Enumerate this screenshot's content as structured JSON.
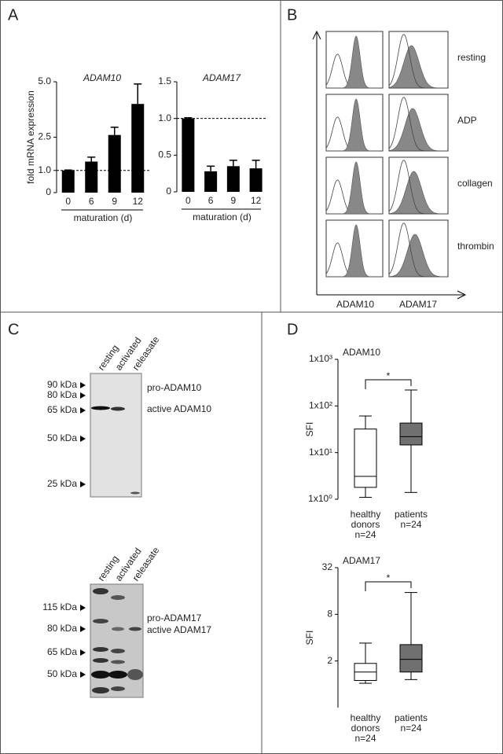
{
  "panel_labels": [
    "A",
    "B",
    "C",
    "D"
  ],
  "chart_data": [
    {
      "type": "bar",
      "title": "ADAM10",
      "ylabel": "fold mRNA expression",
      "xlabel": "maturation (d)",
      "categories": [
        "0",
        "6",
        "9",
        "12"
      ],
      "series": [
        {
          "color": "#000000",
          "values": [
            1.0,
            1.4,
            2.6,
            4.0
          ],
          "errors": [
            0.02,
            0.2,
            0.35,
            0.9
          ]
        }
      ],
      "ylim": [
        0,
        5
      ],
      "yticks": [
        0,
        {
          "value": 1,
          "label": "1.0"
        },
        2.5,
        {
          "value": 5,
          "label": "5.0"
        }
      ],
      "reference_line": 1
    },
    {
      "type": "bar",
      "title": "ADAM17",
      "xlabel": "maturation (d)",
      "categories": [
        "0",
        "6",
        "9",
        "12"
      ],
      "series": [
        {
          "color": "#000000",
          "values": [
            1.0,
            0.28,
            0.35,
            0.32
          ],
          "errors": [
            0.01,
            0.07,
            0.08,
            0.11
          ]
        }
      ],
      "ylim": [
        0,
        1.5
      ],
      "yticks": [
        0,
        0.5,
        {
          "value": 1,
          "label": "1.0"
        },
        1.5
      ],
      "reference_line": 1
    },
    {
      "type": "box",
      "title": "ADAM10",
      "ylabel": "SFI",
      "log_scale": true,
      "ylim": [
        1,
        1000
      ],
      "yticks": [
        {
          "value": 1,
          "label": "1x10⁰"
        },
        {
          "value": 10,
          "label": "1x10¹"
        },
        {
          "value": 100,
          "label": "1x10²"
        },
        {
          "value": 1000,
          "label": "1x10³"
        }
      ],
      "boxes": [
        {
          "label": [
            "healthy",
            "donors",
            "n=24"
          ],
          "color": "#ffffff",
          "min": 1.1,
          "q1": 1.8,
          "median": 3.1,
          "q3": 32,
          "max": 61
        },
        {
          "label": [
            "patients",
            "n=24"
          ],
          "color": "#707070",
          "min": 1.4,
          "q1": 14.6,
          "median": 22,
          "q3": 43,
          "max": 220
        }
      ],
      "annotation": "*"
    },
    {
      "type": "box",
      "title": "ADAM17",
      "ylabel": "SFI",
      "log_scale": true,
      "ylim": [
        0.5,
        32
      ],
      "yticks": [
        2,
        8,
        32
      ],
      "boxes": [
        {
          "label": [
            "healthy",
            "donors",
            "n=24"
          ],
          "color": "#ffffff",
          "min": 1.03,
          "q1": 1.12,
          "median": 1.44,
          "q3": 1.86,
          "max": 3.4
        },
        {
          "label": [
            "patients",
            "n=24"
          ],
          "color": "#707070",
          "min": 1.15,
          "q1": 1.44,
          "median": 2.1,
          "q3": 3.25,
          "max": 15.3
        }
      ],
      "annotation": "*"
    }
  ],
  "flow_cytometry": {
    "rows": [
      "resting",
      "ADP",
      "collagen",
      "thrombin"
    ],
    "columns": [
      "ADAM10",
      "ADAM17"
    ]
  },
  "blots": [
    {
      "lanes": [
        "resting",
        "activated",
        "releasate"
      ],
      "markers": [
        "90 kDa",
        "80 kDa",
        "65 kDa",
        "50 kDa",
        "25 kDa"
      ],
      "bands": [
        "pro-ADAM10",
        "active ADAM10"
      ]
    },
    {
      "lanes": [
        "resting",
        "activated",
        "releasate"
      ],
      "markers": [
        "115 kDa",
        "80 kDa",
        "65 kDa",
        "50 kDa"
      ],
      "bands": [
        "pro-ADAM17",
        "active ADAM17"
      ]
    }
  ]
}
